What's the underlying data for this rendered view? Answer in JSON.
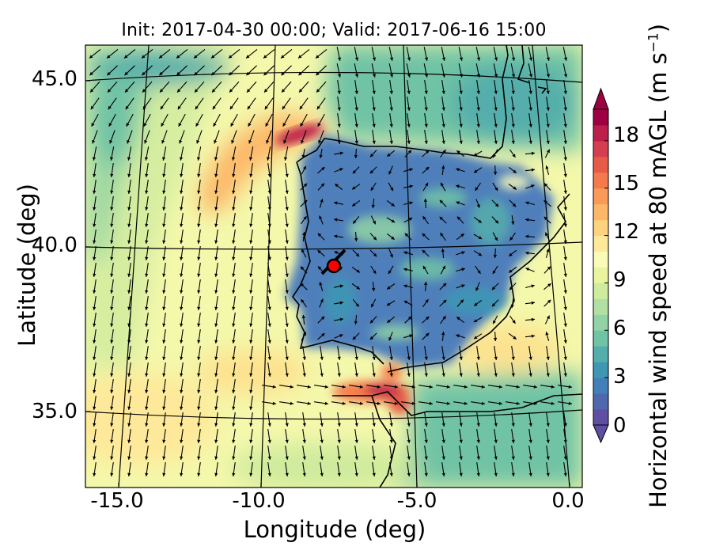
{
  "title": "Init: 2017-04-30 00:00; Valid: 2017-06-16 15:00",
  "axes": {
    "xlabel": "Longitude (deg)",
    "ylabel": "Latitude (deg)",
    "xticks": [
      "-15.0",
      "-10.0",
      "-5.0",
      "0.0"
    ],
    "yticks": [
      "45.0",
      "40.0",
      "35.0"
    ]
  },
  "colorbar": {
    "label_main": "Horizontal wind speed at 80 mAGL (m s",
    "label_exp": "−1",
    "label_close": ")",
    "ticks": [
      "0",
      "3",
      "6",
      "9",
      "12",
      "15",
      "18"
    ],
    "range": [
      0,
      20
    ],
    "colors": [
      "#5e4fa2",
      "#4f67ad",
      "#437fb9",
      "#3e98b4",
      "#55aeab",
      "#70c3a5",
      "#91d3a4",
      "#b1e0a2",
      "#cfeb9d",
      "#e8f59e",
      "#fafbb8",
      "#fee99a",
      "#fed37f",
      "#fdb768",
      "#fa9a58",
      "#f57a4b",
      "#e65b48",
      "#d53e4f",
      "#bb1f4c",
      "#9e0142"
    ]
  },
  "marker": {
    "name": "site",
    "lon": -7.7,
    "lat": 39.4,
    "color": "#ff0000"
  },
  "map_extent": {
    "lon": [
      -16,
      0.4
    ],
    "lat": [
      33.5,
      46
    ]
  }
}
